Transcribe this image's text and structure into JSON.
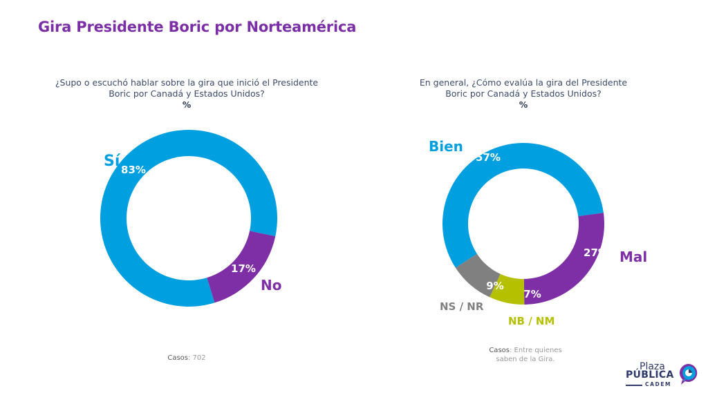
{
  "title": "Gira Presidente Boric por Norteamérica",
  "chart_data": [
    {
      "type": "pie",
      "title": "¿Supo o escuchó hablar sobre la gira que inició el Presidente Boric por Canadá y Estados Unidos?",
      "unit": "%",
      "categories": [
        "Sí",
        "No"
      ],
      "values": [
        83,
        17
      ],
      "colors": [
        "#009fdf",
        "#7e2fa6"
      ],
      "label_colors": [
        "#009fdf",
        "#7e2fa6"
      ],
      "data_labels": [
        "83%",
        "17%"
      ],
      "donut": true,
      "footnote_label": "Casos",
      "footnote_value": ": 702"
    },
    {
      "type": "pie",
      "title": "En general, ¿Cómo evalúa la gira del Presidente Boric por Canadá y Estados Unidos?",
      "unit": "%",
      "categories": [
        "Bien",
        "Mal",
        "NB / NM",
        "NS / NR"
      ],
      "values": [
        57,
        27,
        7,
        9
      ],
      "colors": [
        "#009fdf",
        "#7e2fa6",
        "#b5c000",
        "#808080"
      ],
      "label_colors": [
        "#009fdf",
        "#7e2fa6",
        "#b5c000",
        "#808080"
      ],
      "data_labels": [
        "57%",
        "27%",
        "7%",
        "9%"
      ],
      "donut": true,
      "footnote_label": "Casos",
      "footnote_value": ": Entre quienes saben de la Gira."
    }
  ],
  "questions": [
    {
      "text_line1": "¿Supo o escuchó hablar sobre la gira que inició el Presidente",
      "text_line2": "Boric por Canadá y Estados Unidos?",
      "unit": "%"
    },
    {
      "text_line1": "En general, ¿Cómo evalúa la gira del Presidente",
      "text_line2": "Boric por Canadá y Estados Unidos?",
      "unit": "%"
    }
  ],
  "footnotes": [
    {
      "label": "Casos",
      "value": ": 702",
      "value_line2": ""
    },
    {
      "label": "Casos",
      "value": ": Entre quienes",
      "value_line2": "saben de la Gira."
    }
  ],
  "logo": {
    "line1": "Plaza",
    "line2": "PÚBLICA",
    "line3": "CADEM",
    "colors": {
      "text": "#2f3a6b",
      "blue": "#009fdf",
      "purple": "#7e2fa6"
    }
  }
}
